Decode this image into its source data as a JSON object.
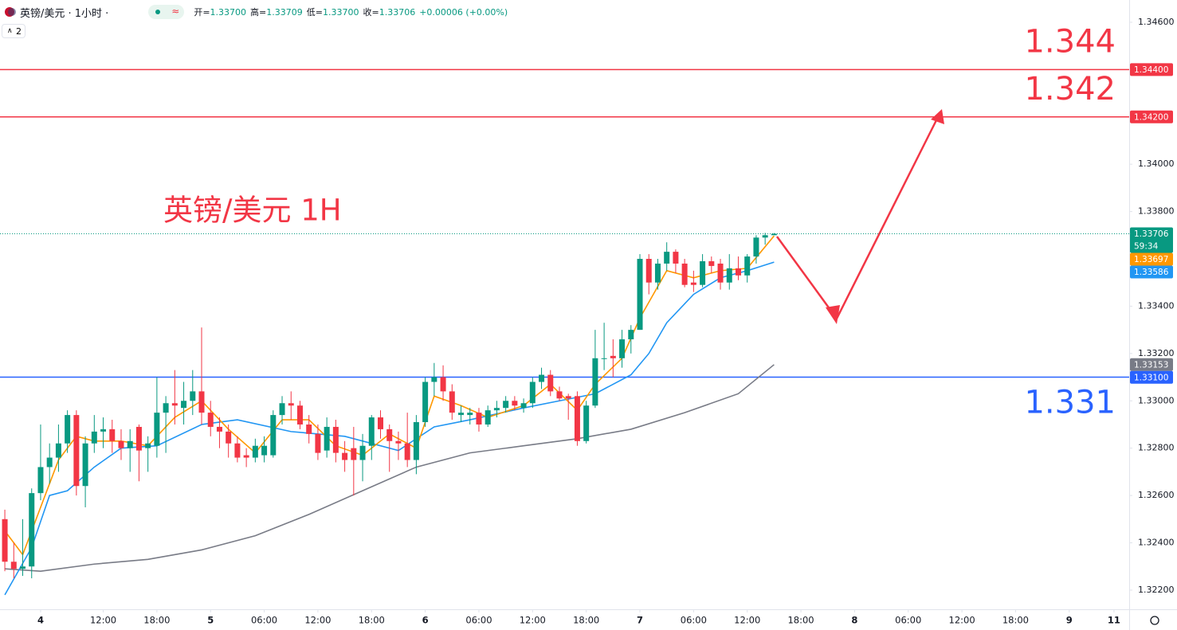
{
  "header": {
    "symbol": "英镑/美元 · 1小时 ·",
    "ohlc": [
      {
        "label": "开=",
        "value": "1.33700"
      },
      {
        "label": "高=",
        "value": "1.33709"
      },
      {
        "label": "低=",
        "value": "1.33700"
      },
      {
        "label": "收=",
        "value": "1.33706"
      }
    ],
    "change": "+0.00006 (+0.00%)",
    "indicator_count": "2"
  },
  "chart_data": {
    "type": "candlestick",
    "title": "英镑/美元 1H",
    "up_color": "#089981",
    "down_color": "#f23645",
    "x": [
      -4,
      -3,
      -2,
      -1,
      0,
      1,
      2,
      3,
      4,
      5,
      6,
      7,
      8,
      9,
      10,
      11,
      12,
      13,
      14,
      15,
      16,
      17,
      18,
      19,
      20,
      21,
      22,
      23,
      24,
      25,
      26,
      27,
      28,
      29,
      30,
      31,
      32,
      33,
      34,
      35,
      36,
      37,
      38,
      39,
      40,
      41,
      42,
      43,
      44,
      45,
      46,
      47,
      48,
      49,
      50,
      51,
      52,
      53,
      54,
      55,
      56,
      57,
      58,
      59,
      60,
      61,
      62,
      63,
      64,
      65,
      66,
      67,
      68,
      69,
      70,
      71,
      72,
      73,
      74,
      75,
      76,
      77,
      78,
      79,
      80,
      81,
      82
    ],
    "open": [
      1.325,
      1.3232,
      1.3229,
      1.323,
      1.3261,
      1.3272,
      1.3276,
      1.3282,
      1.3294,
      1.3264,
      1.3282,
      1.3287,
      1.3288,
      1.3283,
      1.328,
      1.3289,
      1.328,
      1.3281,
      1.3295,
      1.3299,
      1.3297,
      1.33,
      1.3304,
      1.3295,
      1.3289,
      1.3287,
      1.3282,
      1.3277,
      1.3276,
      1.3277,
      1.3277,
      1.3294,
      1.3299,
      1.3298,
      1.329,
      1.3286,
      1.3279,
      1.3289,
      1.3278,
      1.328,
      1.3275,
      1.3281,
      1.3293,
      1.3288,
      1.3283,
      1.3282,
      1.3275,
      1.3291,
      1.3308,
      1.331,
      1.3304,
      1.3294,
      1.3294,
      1.3295,
      1.329,
      1.3296,
      1.3297,
      1.33,
      1.3297,
      1.3299,
      1.3308,
      1.3311,
      1.3304,
      1.3302,
      1.3302,
      1.3283,
      1.3298,
      1.3318,
      1.3319,
      1.3318,
      1.3326,
      1.333,
      1.336,
      1.335,
      1.3358,
      1.3363,
      1.3358,
      1.335,
      1.3349,
      1.3359,
      1.3358,
      1.335,
      1.3356,
      1.3353,
      1.3361,
      1.3369,
      1.337
    ],
    "high": [
      1.3254,
      1.324,
      1.325,
      1.3263,
      1.329,
      1.3282,
      1.329,
      1.3296,
      1.3296,
      1.3285,
      1.3294,
      1.3293,
      1.3292,
      1.3288,
      1.3288,
      1.329,
      1.3285,
      1.331,
      1.3302,
      1.3313,
      1.3308,
      1.3313,
      1.3331,
      1.33,
      1.3293,
      1.329,
      1.3285,
      1.328,
      1.3284,
      1.3285,
      1.3296,
      1.3302,
      1.3304,
      1.33,
      1.3294,
      1.329,
      1.3293,
      1.3292,
      1.3283,
      1.3289,
      1.3286,
      1.3294,
      1.3296,
      1.329,
      1.3287,
      1.3295,
      1.3294,
      1.331,
      1.3316,
      1.3315,
      1.3307,
      1.3298,
      1.3297,
      1.3297,
      1.3298,
      1.33,
      1.3302,
      1.3302,
      1.3301,
      1.331,
      1.3314,
      1.3313,
      1.3306,
      1.3303,
      1.3304,
      1.33,
      1.333,
      1.3333,
      1.3326,
      1.333,
      1.3332,
      1.3362,
      1.3362,
      1.336,
      1.3367,
      1.3364,
      1.336,
      1.3355,
      1.3362,
      1.3361,
      1.336,
      1.3362,
      1.3361,
      1.3362,
      1.337,
      1.3371,
      1.33709
    ],
    "low": [
      1.3228,
      1.3225,
      1.3226,
      1.3225,
      1.3258,
      1.3265,
      1.327,
      1.3278,
      1.326,
      1.3255,
      1.3278,
      1.328,
      1.3278,
      1.3275,
      1.327,
      1.3266,
      1.327,
      1.3276,
      1.3278,
      1.329,
      1.329,
      1.3294,
      1.329,
      1.3285,
      1.328,
      1.3276,
      1.3274,
      1.3272,
      1.3274,
      1.3274,
      1.3276,
      1.329,
      1.3292,
      1.3288,
      1.3282,
      1.3275,
      1.3276,
      1.3274,
      1.327,
      1.326,
      1.3266,
      1.3275,
      1.3284,
      1.327,
      1.3275,
      1.3272,
      1.3269,
      1.3289,
      1.3302,
      1.33,
      1.3292,
      1.3291,
      1.329,
      1.3287,
      1.3289,
      1.3293,
      1.3295,
      1.3296,
      1.3295,
      1.3297,
      1.3305,
      1.3302,
      1.33,
      1.3292,
      1.3281,
      1.3282,
      1.3297,
      1.3313,
      1.331,
      1.3314,
      1.332,
      1.333,
      1.3345,
      1.3347,
      1.3355,
      1.3354,
      1.3348,
      1.3346,
      1.3348,
      1.3354,
      1.3347,
      1.3347,
      1.3351,
      1.335,
      1.3358,
      1.3366,
      1.337
    ],
    "close": [
      1.3232,
      1.3229,
      1.323,
      1.3261,
      1.3272,
      1.3276,
      1.3282,
      1.3294,
      1.3264,
      1.3282,
      1.3287,
      1.3288,
      1.3283,
      1.328,
      1.3283,
      1.3279,
      1.3282,
      1.3295,
      1.3299,
      1.3298,
      1.33,
      1.3304,
      1.3295,
      1.3289,
      1.3287,
      1.3282,
      1.3276,
      1.3276,
      1.3281,
      1.3281,
      1.3294,
      1.3299,
      1.3298,
      1.329,
      1.3286,
      1.3278,
      1.3289,
      1.3278,
      1.3275,
      1.3275,
      1.3281,
      1.3293,
      1.3288,
      1.3283,
      1.3282,
      1.3275,
      1.3291,
      1.3308,
      1.331,
      1.3304,
      1.3295,
      1.3295,
      1.3295,
      1.329,
      1.3296,
      1.3297,
      1.33,
      1.3298,
      1.3299,
      1.3308,
      1.3311,
      1.3304,
      1.3301,
      1.3301,
      1.3283,
      1.3298,
      1.3318,
      1.3318,
      1.3318,
      1.3326,
      1.333,
      1.336,
      1.335,
      1.3358,
      1.3363,
      1.3358,
      1.3349,
      1.3349,
      1.3359,
      1.3357,
      1.335,
      1.3356,
      1.3353,
      1.3361,
      1.3369,
      1.337,
      1.33706
    ],
    "lines": [
      {
        "color": "#787b86",
        "x": [
          -4,
          0,
          6,
          12,
          18,
          24,
          30,
          36,
          42,
          48,
          54,
          60,
          66,
          72,
          78,
          82
        ],
        "values": [
          1.3229,
          1.3228,
          1.3231,
          1.3233,
          1.3237,
          1.3243,
          1.3252,
          1.3262,
          1.3272,
          1.3278,
          1.3281,
          1.3284,
          1.3288,
          1.3295,
          1.3303,
          1.33153
        ]
      },
      {
        "color": "#2196f3",
        "x": [
          -4,
          -1,
          1,
          3,
          6,
          9,
          13,
          18,
          22,
          28,
          34,
          40,
          44,
          48,
          54,
          58,
          62,
          66,
          68,
          70,
          73,
          76,
          79,
          82
        ],
        "values": [
          1.3218,
          1.3238,
          1.326,
          1.3262,
          1.3272,
          1.328,
          1.3281,
          1.329,
          1.3292,
          1.3287,
          1.3285,
          1.3279,
          1.3289,
          1.3292,
          1.3297,
          1.33,
          1.3303,
          1.3311,
          1.332,
          1.3333,
          1.3345,
          1.3352,
          1.3355,
          1.33586
        ]
      },
      {
        "color": "#ff9800",
        "x": [
          -4,
          -2,
          0,
          2,
          4,
          6,
          9,
          12,
          15,
          18,
          21,
          24,
          27,
          30,
          33,
          36,
          39,
          42,
          44,
          47,
          50,
          54,
          57,
          60,
          62,
          65,
          67,
          70,
          73,
          76,
          79,
          82
        ],
        "values": [
          1.3245,
          1.3235,
          1.3255,
          1.3275,
          1.3285,
          1.3283,
          1.3283,
          1.3281,
          1.3293,
          1.33,
          1.3288,
          1.3278,
          1.3292,
          1.3292,
          1.3281,
          1.3277,
          1.3286,
          1.328,
          1.3302,
          1.3298,
          1.3293,
          1.3298,
          1.3307,
          1.3296,
          1.3307,
          1.3318,
          1.3335,
          1.3355,
          1.3352,
          1.3355,
          1.3356,
          1.33697
        ]
      }
    ],
    "levels": [
      {
        "value": 1.344,
        "annotation": "1.344",
        "color": "#f23645",
        "annotation_position": "above"
      },
      {
        "value": 1.342,
        "annotation": "1.342",
        "color": "#f23645",
        "annotation_position": "above"
      },
      {
        "value": 1.331,
        "annotation": "1.331",
        "color": "#2962ff",
        "annotation_position": "below"
      }
    ],
    "price_labels": [
      {
        "value": 1.344,
        "label": "1.34400",
        "color": "#f23645"
      },
      {
        "value": 1.342,
        "label": "1.34200",
        "color": "#f23645"
      },
      {
        "value": 1.33706,
        "label": "1.33706",
        "countdown": "59:34",
        "color": "#089981"
      },
      {
        "value": 1.33697,
        "label": "1.33697",
        "color": "#ff9800"
      },
      {
        "value": 1.33586,
        "label": "1.33586",
        "color": "#2196f3"
      },
      {
        "value": 1.33153,
        "label": "1.33153",
        "color": "#787b86"
      },
      {
        "value": 1.331,
        "label": "1.33100",
        "color": "#2962ff"
      }
    ],
    "xlim": [
      -4.54,
      121.7
    ],
    "xticks": [
      {
        "value": 0,
        "label": "4"
      },
      {
        "value": 7,
        "label": "12:00"
      },
      {
        "value": 13,
        "label": "18:00"
      },
      {
        "value": 19,
        "label": "5"
      },
      {
        "value": 25,
        "label": "06:00"
      },
      {
        "value": 31,
        "label": "12:00"
      },
      {
        "value": 37,
        "label": "18:00"
      },
      {
        "value": 43,
        "label": "6"
      },
      {
        "value": 49,
        "label": "06:00"
      },
      {
        "value": 55,
        "label": "12:00"
      },
      {
        "value": 61,
        "label": "18:00"
      },
      {
        "value": 67,
        "label": "7"
      },
      {
        "value": 73,
        "label": "06:00"
      },
      {
        "value": 79,
        "label": "12:00"
      },
      {
        "value": 85,
        "label": "18:00"
      },
      {
        "value": 91,
        "label": "8"
      },
      {
        "value": 97,
        "label": "06:00"
      },
      {
        "value": 103,
        "label": "12:00"
      },
      {
        "value": 109,
        "label": "18:00"
      },
      {
        "value": 115,
        "label": "9"
      },
      {
        "value": 120,
        "label": "11"
      }
    ],
    "ylim": [
      1.32119,
      1.34694
    ],
    "yticks": [
      {
        "value": 1.346,
        "label": "1.34600"
      },
      {
        "value": 1.34,
        "label": "1.34000"
      },
      {
        "value": 1.338,
        "label": "1.33800"
      },
      {
        "value": 1.334,
        "label": "1.33400"
      },
      {
        "value": 1.332,
        "label": "1.33200"
      },
      {
        "value": 1.33,
        "label": "1.33000"
      },
      {
        "value": 1.328,
        "label": "1.32800"
      },
      {
        "value": 1.326,
        "label": "1.32600"
      },
      {
        "value": 1.324,
        "label": "1.32400"
      },
      {
        "value": 1.322,
        "label": "1.32200"
      }
    ]
  }
}
